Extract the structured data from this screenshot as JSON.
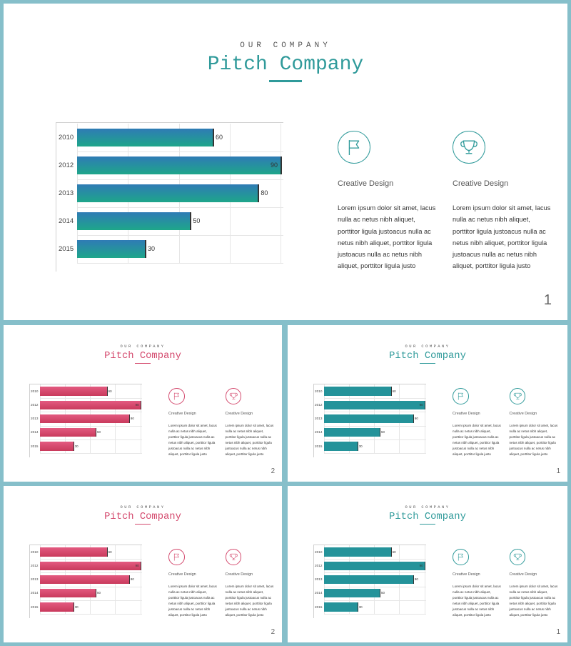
{
  "colors": {
    "teal": "#2f9a9a",
    "teal_gradient": [
      "#2f7bb5",
      "#1ea68a"
    ],
    "pink": "#d44a6e",
    "pink_gradient": [
      "#e35a80",
      "#c93a5c"
    ],
    "teal_flat": "#24939a"
  },
  "kicker": "OUR COMPANY",
  "title": "Pitch Company",
  "chart_data": {
    "type": "bar",
    "categories": [
      "2010",
      "2012",
      "2013",
      "2014",
      "2015"
    ],
    "values": [
      60,
      90,
      80,
      50,
      30
    ],
    "xlim": [
      0,
      90
    ]
  },
  "features": [
    {
      "icon": "flag-icon",
      "title": "Creative Design",
      "text": "Lorem ipsum dolor sit amet, lacus nulla ac netus nibh aliquet, porttitor ligula justoacus nulla ac netus nibh aliquet, porttitor ligula justoacus nulla ac netus nibh aliquet, porttitor ligula justo"
    },
    {
      "icon": "trophy-icon",
      "title": "Creative Design",
      "text": "Lorem ipsum dolor sit amet, lacus nulla ac netus nibh aliquet, porttitor ligula justoacus nulla ac netus nibh aliquet, porttitor ligula justoacus nulla ac netus nibh aliquet, porttitor ligula justo"
    }
  ],
  "slides": [
    {
      "page": "1",
      "theme": "teal-gradient"
    },
    {
      "page": "2",
      "theme": "pink"
    },
    {
      "page": "1",
      "theme": "teal-flat"
    },
    {
      "page": "2",
      "theme": "pink"
    },
    {
      "page": "1",
      "theme": "teal-flat"
    }
  ]
}
